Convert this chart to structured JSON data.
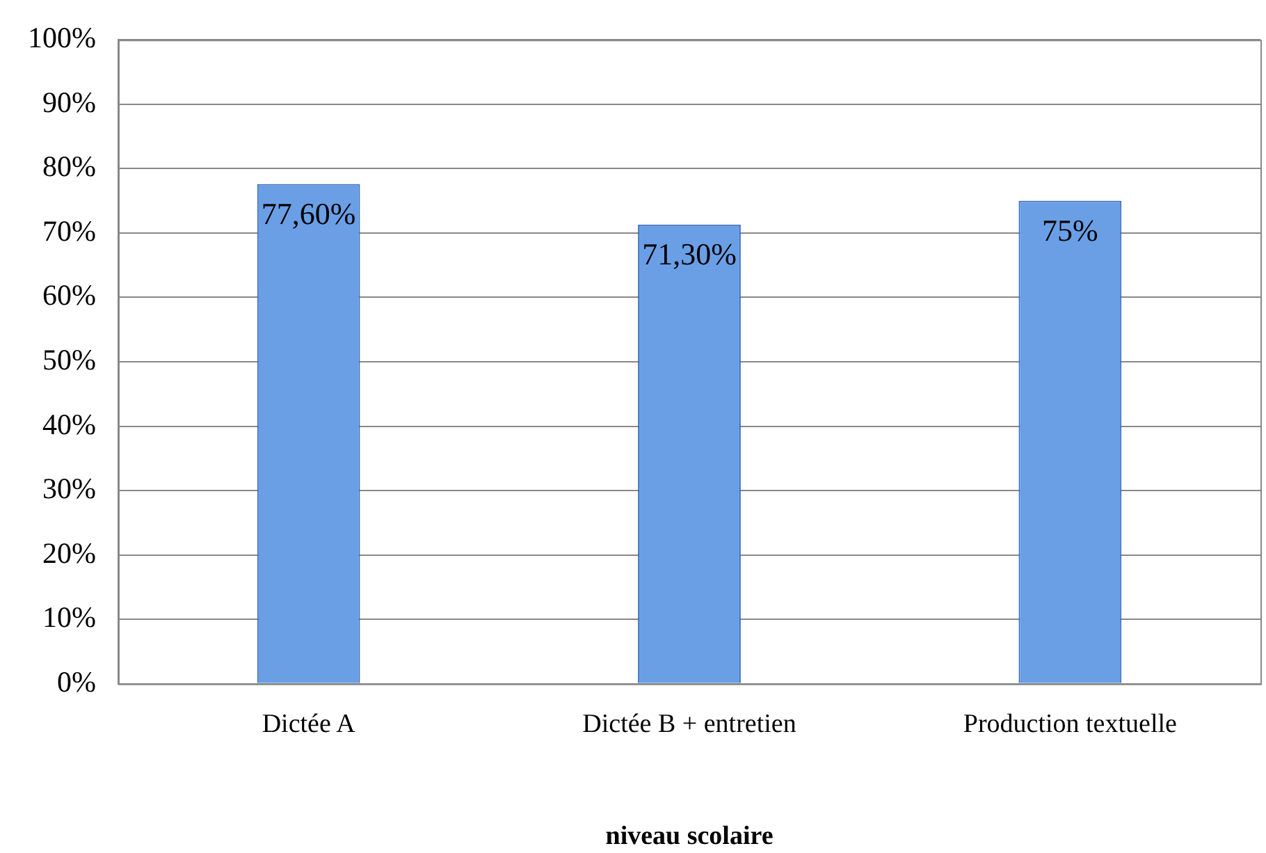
{
  "chart_data": {
    "type": "bar",
    "xlabel": "niveau scolaire",
    "categories": [
      "Dictée A",
      "Dictée B + entretien",
      "Production textuelle"
    ],
    "values": [
      77.6,
      71.3,
      75
    ],
    "value_labels": [
      "77,60%",
      "71,30%",
      "75%"
    ],
    "color": "#6a9fe6",
    "ylim": [
      0,
      100
    ],
    "yticks": [
      {
        "value": 0,
        "label": "0%"
      },
      {
        "value": 10,
        "label": "10%"
      },
      {
        "value": 20,
        "label": "20%"
      },
      {
        "value": 30,
        "label": "30%"
      },
      {
        "value": 40,
        "label": "40%"
      },
      {
        "value": 50,
        "label": "50%"
      },
      {
        "value": 60,
        "label": "60%"
      },
      {
        "value": 70,
        "label": "70%"
      },
      {
        "value": 80,
        "label": "80%"
      },
      {
        "value": 90,
        "label": "90%"
      },
      {
        "value": 100,
        "label": "100%"
      }
    ],
    "grid": "y",
    "legend": false
  }
}
